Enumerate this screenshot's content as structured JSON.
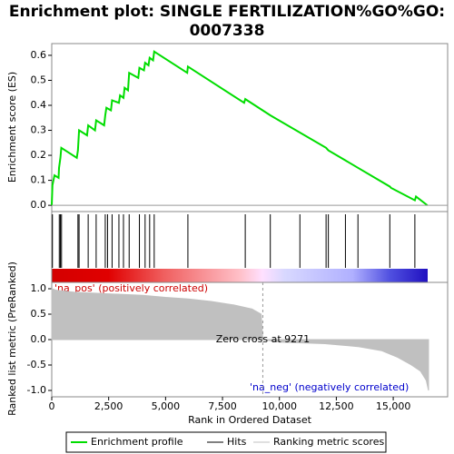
{
  "chart_data": {
    "type": "line",
    "title_lines": [
      "Enrichment plot: SINGLE FERTILIZATION%GO%GO:",
      "0007338"
    ],
    "x_label": "Rank in Ordered Dataset",
    "y_label": "Enrichment score (ES)",
    "y2_label": "Ranked list metric (PreRanked)",
    "xlim": [
      0,
      17390
    ],
    "xticks": [
      0,
      {
        "value": 2500,
        "label": "2,500"
      },
      {
        "value": 5000,
        "label": "5,000"
      },
      {
        "value": 7500,
        "label": "7,500"
      },
      {
        "value": 10000,
        "label": "10,000"
      },
      {
        "value": 12500,
        "label": "12,500"
      },
      {
        "value": 15000,
        "label": "15,000"
      }
    ],
    "ylim": [
      -0.025,
      0.647
    ],
    "yticks": [
      {
        "value": 0,
        "label": "0.0"
      },
      {
        "value": 0.1,
        "label": "0.1"
      },
      {
        "value": 0.2,
        "label": "0.2"
      },
      {
        "value": 0.3,
        "label": "0.3"
      },
      {
        "value": 0.4,
        "label": "0.4"
      },
      {
        "value": 0.5,
        "label": "0.5"
      },
      {
        "value": 0.6,
        "label": "0.6"
      }
    ],
    "y2lim": [
      -1.125,
      1.125
    ],
    "y2ticks": [
      {
        "value": 1,
        "label": "1.0"
      },
      {
        "value": 0.5,
        "label": "0.5"
      },
      {
        "value": 0,
        "label": "0.0"
      },
      {
        "value": -0.5,
        "label": "-0.5"
      },
      {
        "value": -1,
        "label": "-1.0"
      }
    ],
    "series": [
      {
        "name": "Enrichment profile",
        "color": "#00dd00",
        "x": [
          0,
          30,
          120,
          300,
          320,
          380,
          420,
          1100,
          1150,
          1200,
          1550,
          1600,
          1900,
          1950,
          2300,
          2350,
          2400,
          2600,
          2650,
          2950,
          3000,
          3150,
          3200,
          3350,
          3400,
          3800,
          3850,
          4050,
          4100,
          4250,
          4300,
          4450,
          4500,
          5950,
          5980,
          8450,
          8500,
          9600,
          12050,
          12150,
          13450,
          14850,
          14900,
          15950,
          16000,
          16500
        ],
        "values": [
          0,
          0.08,
          0.12,
          0.11,
          0.15,
          0.19,
          0.23,
          0.19,
          0.22,
          0.3,
          0.28,
          0.32,
          0.3,
          0.34,
          0.32,
          0.36,
          0.39,
          0.38,
          0.42,
          0.41,
          0.44,
          0.43,
          0.47,
          0.46,
          0.53,
          0.51,
          0.55,
          0.54,
          0.57,
          0.56,
          0.59,
          0.58,
          0.615,
          0.53,
          0.555,
          0.41,
          0.425,
          0.36,
          0.23,
          0.22,
          0.15,
          0.075,
          0.07,
          0.02,
          0.035,
          0
        ]
      },
      {
        "name": "Ranking metric scores",
        "color": "#c0c0c0",
        "axis": "y2",
        "x": [
          0,
          200,
          1000,
          2500,
          4000,
          5000,
          6000,
          7000,
          8000,
          8800,
          9200,
          9271,
          10000,
          12000,
          13500,
          14500,
          15200,
          15800,
          16200,
          16450,
          16550
        ],
        "values": [
          1.0,
          0.97,
          0.93,
          0.9,
          0.87,
          0.83,
          0.8,
          0.75,
          0.68,
          0.6,
          0.5,
          0,
          -0.05,
          -0.08,
          -0.14,
          -0.22,
          -0.35,
          -0.5,
          -0.62,
          -0.8,
          -1.0
        ]
      }
    ],
    "hits": {
      "name": "Hits",
      "color": "#000000",
      "x": [
        30,
        330,
        380,
        430,
        1150,
        1200,
        1600,
        1950,
        2350,
        2450,
        2650,
        2950,
        3150,
        3400,
        3850,
        4100,
        4300,
        4500,
        5980,
        8500,
        9600,
        10900,
        12050,
        12150,
        12900,
        13450,
        14850,
        15950
      ]
    },
    "zero_cross": {
      "value": 9271,
      "label": "Zero cross at 9271"
    },
    "annotations": [
      "'na_pos' (positively correlated)",
      "'na_neg' (negatively correlated)"
    ]
  }
}
